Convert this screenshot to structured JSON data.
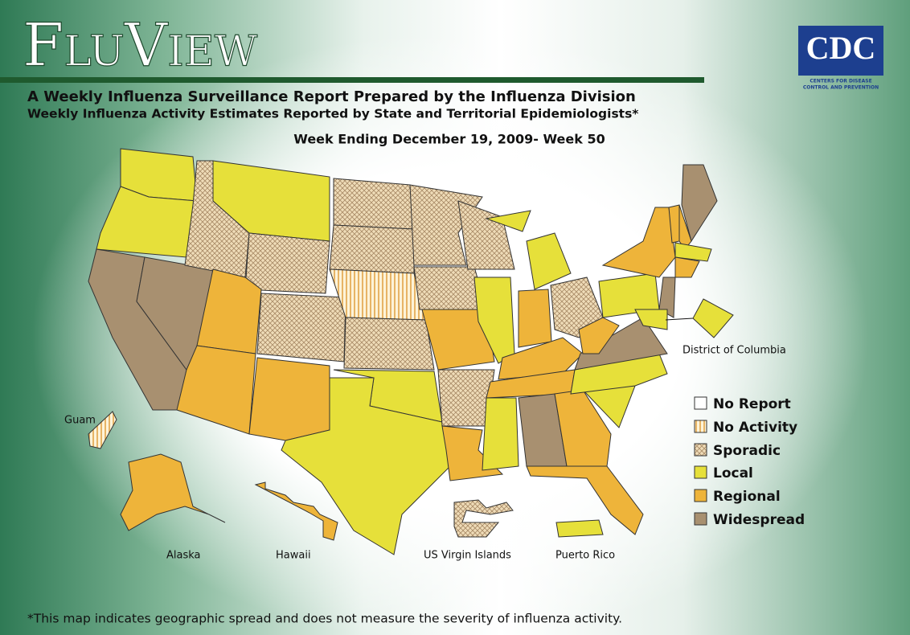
{
  "header": {
    "title": "FluView",
    "subtitle": "A Weekly Influenza Surveillance Report Prepared by the Influenza Division",
    "description": "Weekly Influenza Activity Estimates Reported by State and Territorial Epidemiologists*",
    "week": "Week Ending December 19, 2009- Week 50"
  },
  "logo": {
    "name": "CDC",
    "line1": "CENTERS FOR DISEASE",
    "line2": "CONTROL AND PREVENTION"
  },
  "map": {
    "labels": [
      "District of Columbia",
      "Guam",
      "Alaska",
      "Hawaii",
      "US Virgin Islands",
      "Puerto Rico"
    ]
  },
  "legend": [
    "No Report",
    "No Activity",
    "Sporadic",
    "Local",
    "Regional",
    "Widespread"
  ],
  "footnote": "*This map indicates geographic spread and does not measure the severity of influenza activity."
}
